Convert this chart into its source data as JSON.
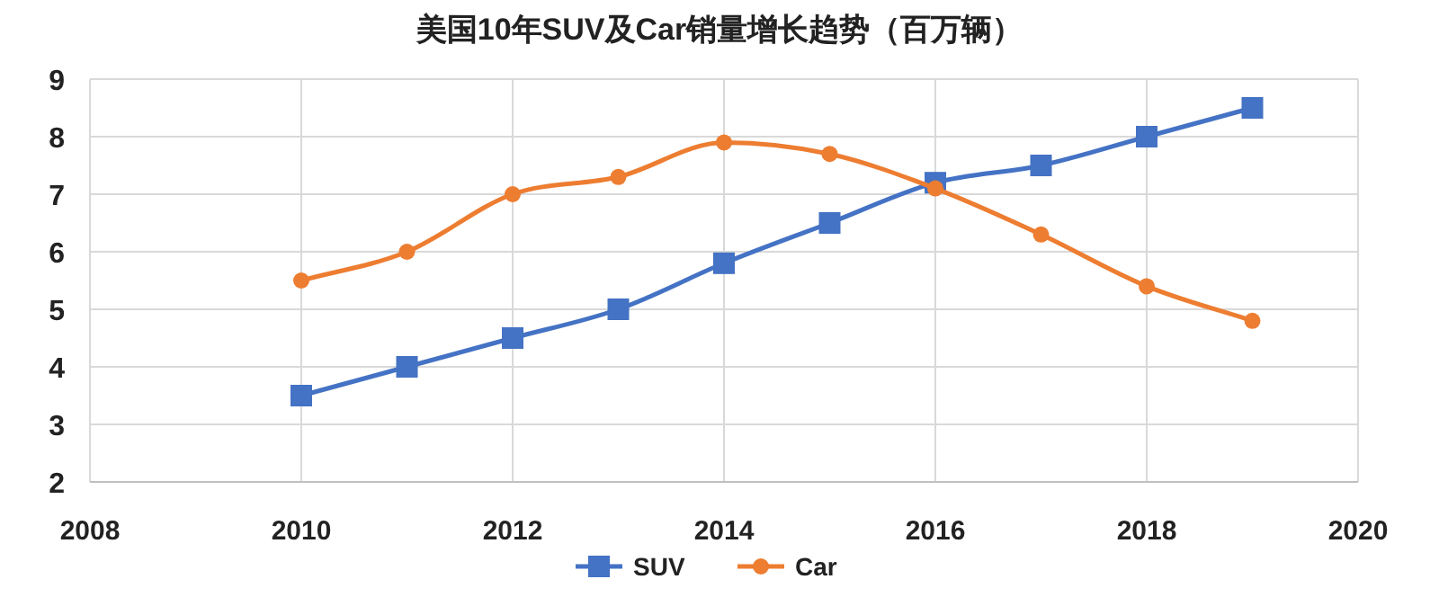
{
  "chart_data": {
    "type": "line",
    "title": "美国10年SUV及Car销量增长趋势（百万辆）",
    "x": [
      2010,
      2011,
      2012,
      2013,
      2014,
      2015,
      2016,
      2017,
      2018,
      2019
    ],
    "xlim": [
      2008,
      2020
    ],
    "xticks": [
      2008,
      2010,
      2012,
      2014,
      2016,
      2018,
      2020
    ],
    "ylim": [
      2,
      9
    ],
    "yticks": [
      2,
      3,
      4,
      5,
      6,
      7,
      8,
      9
    ],
    "grid": true,
    "legend": "bottom",
    "series": [
      {
        "name": "SUV",
        "color": "#4472c4",
        "marker": "square",
        "values": [
          3.5,
          4.0,
          4.5,
          5.0,
          5.8,
          6.5,
          7.2,
          7.5,
          8.0,
          8.5
        ]
      },
      {
        "name": "Car",
        "color": "#ed7d31",
        "marker": "circle",
        "values": [
          5.5,
          6.0,
          7.0,
          7.3,
          7.9,
          7.7,
          7.1,
          6.3,
          5.4,
          4.8
        ]
      }
    ]
  }
}
